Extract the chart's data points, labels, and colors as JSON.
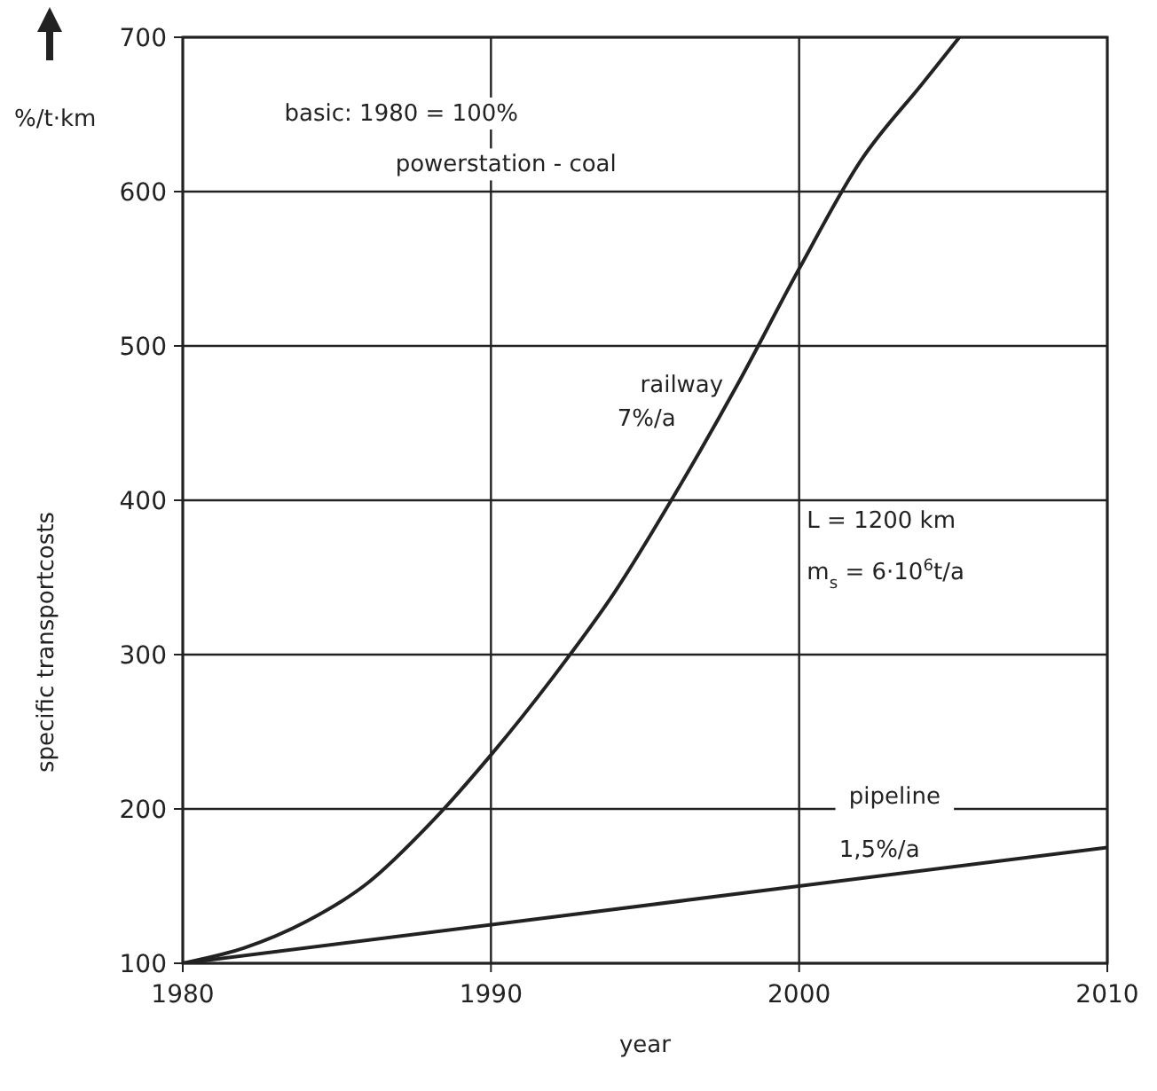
{
  "chart_data": {
    "type": "line",
    "xlabel": "year",
    "ylabel": "specific transportcosts",
    "xlim": [
      1980,
      2010
    ],
    "xticks": [
      1980,
      1990,
      2000,
      2010
    ],
    "ylim": [
      100,
      700
    ],
    "yticks": [
      100,
      200,
      300,
      400,
      500,
      600,
      700
    ],
    "grid": true,
    "marker": "none",
    "line_style": "solid",
    "series": [
      {
        "name": "railway",
        "color": "#222222",
        "x": [
          1980,
          1982,
          1984,
          1986,
          1988,
          1990,
          1992,
          1994,
          1996,
          1998,
          2000,
          2002,
          2004,
          2005.2
        ],
        "values": [
          100,
          110,
          127,
          152,
          190,
          235,
          285,
          340,
          405,
          475,
          550,
          620,
          670,
          700
        ]
      },
      {
        "name": "pipeline",
        "color": "#222222",
        "x": [
          1980,
          2010
        ],
        "values": [
          100,
          175
        ]
      }
    ],
    "annotations": [
      "%/t·km",
      "basic: 1980 = 100%",
      "powerstation - coal",
      "7%/a",
      "L = 1200 km",
      "m$_{s}$ = 6·10$^{6}$t/a",
      "1,5%/a"
    ]
  }
}
